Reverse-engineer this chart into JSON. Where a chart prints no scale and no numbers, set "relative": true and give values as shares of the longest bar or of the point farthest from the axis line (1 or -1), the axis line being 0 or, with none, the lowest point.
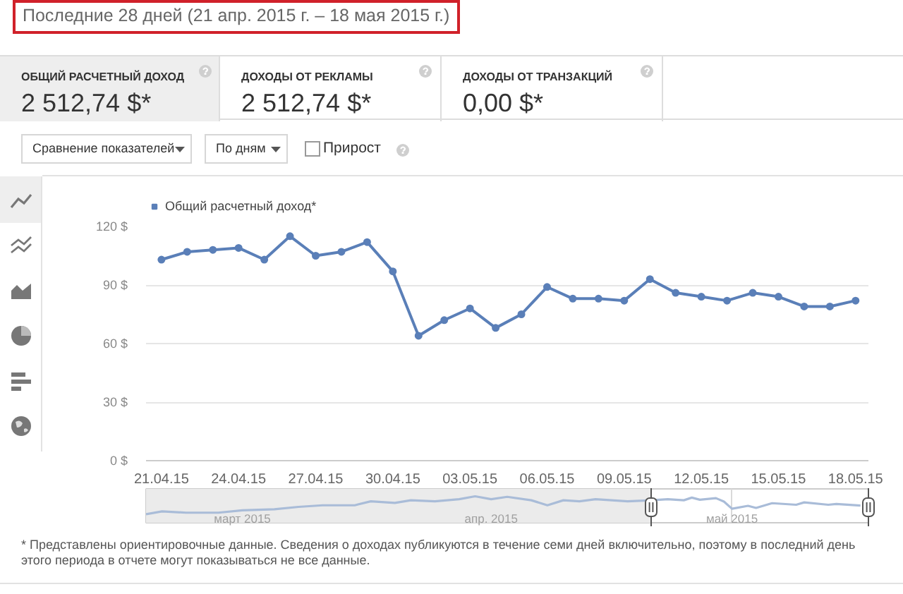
{
  "chart_data": [
    {
      "type": "other",
      "title": "Последние 28 дней (21 апр. 2015 г. – 18 мая 2015 г.)",
      "annotations": [
        "ОБЩИЙ РАСЧЕТНЫЙ ДОХОД",
        "2 512,74 $*",
        "ДОХОДЫ ОТ РЕКЛАМЫ",
        "2 512,74 $*",
        "ДОХОДЫ ОТ ТРАНЗАКЦИЙ",
        "0,00 $*",
        "Сравнение показателей",
        "По дням",
        "Прирост"
      ]
    },
    {
      "type": "line",
      "categories": [
        "21.04.15",
        null,
        null,
        "24.04.15",
        null,
        null,
        "27.04.15",
        null,
        null,
        "30.04.15",
        null,
        null,
        "03.05.15",
        null,
        null,
        "06.05.15",
        null,
        null,
        "09.05.15",
        null,
        null,
        "12.05.15",
        null,
        null,
        "15.05.15",
        null,
        null,
        "18.05.15"
      ],
      "series": [
        {
          "name": "Общий расчетный доход*",
          "color": "#5a7fb8",
          "values": [
            103,
            107,
            108,
            109,
            103,
            115,
            105,
            107,
            112,
            97,
            64,
            72,
            78,
            68,
            75,
            89,
            83,
            83,
            82,
            93,
            86,
            84,
            82,
            86,
            84,
            79,
            79,
            82
          ]
        }
      ],
      "ylim": [
        0,
        120
      ],
      "yticks": [
        {
          "value": 0,
          "label": "0 $"
        },
        {
          "value": 30,
          "label": "30 $"
        },
        {
          "value": 60,
          "label": "60 $"
        },
        {
          "value": 90,
          "label": "90 $"
        },
        {
          "value": 120,
          "label": "120 $"
        }
      ],
      "grid": "y",
      "legend": "top left",
      "marker": "circle",
      "line_style": "solid",
      "annotations": [
        "* Представлены ориентировочные данные. Сведения о доходах публикуются в течение семи дней включительно, поэтому в последний день этого периода в отчете могут показываться не все данные."
      ]
    },
    {
      "type": "line",
      "relative": true,
      "tick_labels": "x",
      "marker": "none",
      "grid": "x",
      "x": [
        "2015-02-17",
        "2015-02-19",
        "2015-02-22",
        "2015-02-26",
        "2015-03-01",
        "2015-03-05",
        "2015-03-08",
        "2015-03-11",
        "2015-03-15",
        "2015-03-17",
        "2015-03-20",
        "2015-03-22",
        "2015-03-25",
        "2015-03-28",
        "2015-03-30",
        "2015-04-01",
        "2015-04-03",
        "2015-04-06",
        "2015-04-08",
        "2015-04-10",
        "2015-04-12",
        "2015-04-14",
        "2015-04-18",
        "2015-04-21",
        "2015-04-23",
        "2015-04-25",
        "2015-04-26",
        "2015-04-27",
        "2015-04-29",
        "2015-04-30",
        "2015-05-01",
        "2015-05-03",
        "2015-05-04",
        "2015-05-06",
        "2015-05-09",
        "2015-05-10",
        "2015-05-13",
        "2015-05-14",
        "2015-05-17"
      ],
      "series": [
        {
          "color": "#a9bcd8",
          "values": [
            0.32,
            0.43,
            0.38,
            0.38,
            0.47,
            0.51,
            0.6,
            0.66,
            0.66,
            0.81,
            0.75,
            0.85,
            0.81,
            0.89,
            1.0,
            0.89,
            0.98,
            0.85,
            0.66,
            0.85,
            0.81,
            0.89,
            0.81,
            0.85,
            0.89,
            0.85,
            0.95,
            0.87,
            0.93,
            0.8,
            0.53,
            0.64,
            0.56,
            0.74,
            0.68,
            0.77,
            0.68,
            0.71,
            0.65
          ]
        }
      ],
      "xlim": [
        "2015-02-17",
        "2015-05-18"
      ],
      "xticks": [
        {
          "value": "2015-03-01",
          "label": "март 2015"
        },
        {
          "value": "2015-04-01",
          "label": "апр. 2015"
        },
        {
          "value": "2015-05-01",
          "label": "май 2015"
        }
      ],
      "bands": [
        {
          "axis": "x",
          "from": "2015-02-17",
          "to": "2015-04-21",
          "color": "#ebebeb"
        }
      ]
    }
  ]
}
